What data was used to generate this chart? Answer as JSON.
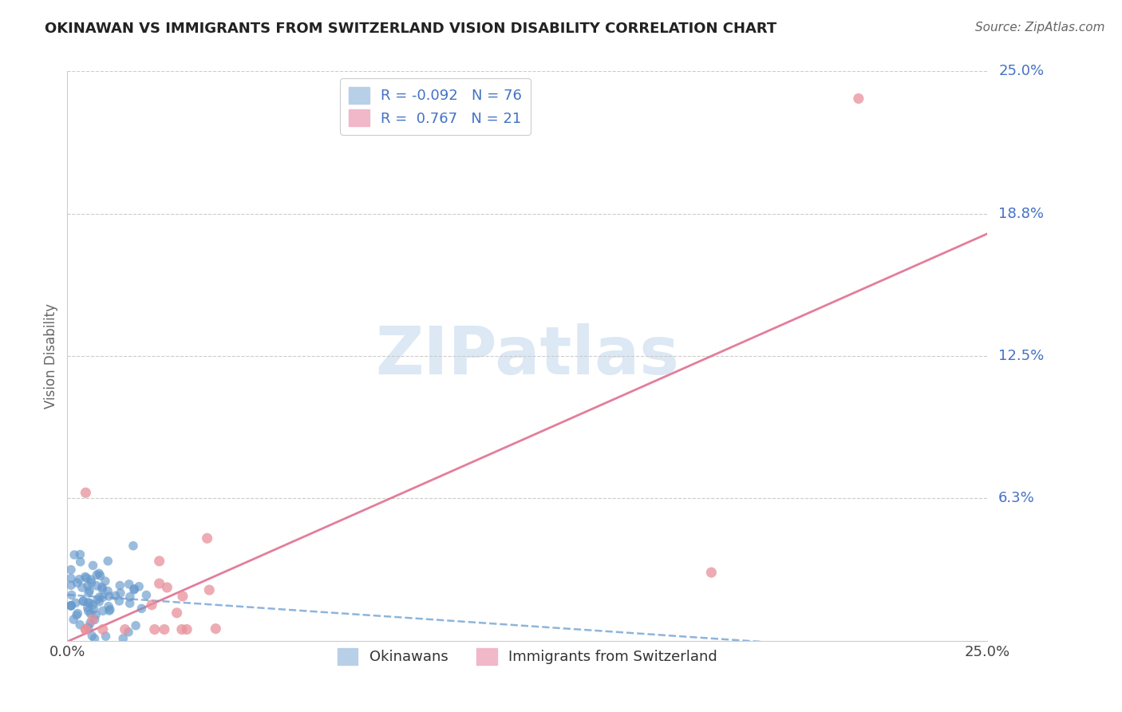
{
  "title": "OKINAWAN VS IMMIGRANTS FROM SWITZERLAND VISION DISABILITY CORRELATION CHART",
  "source_text": "Source: ZipAtlas.com",
  "ylabel": "Vision Disability",
  "xlim": [
    0,
    0.25
  ],
  "ylim": [
    0,
    0.25
  ],
  "ytick_vals": [
    0.0625,
    0.125,
    0.1875,
    0.25
  ],
  "ytick_labels": [
    "6.3%",
    "12.5%",
    "18.8%",
    "25.0%"
  ],
  "xtick_vals": [
    0.0,
    0.25
  ],
  "xtick_labels": [
    "0.0%",
    "25.0%"
  ],
  "okinawan_color": "#6699cc",
  "swiss_color": "#e8909a",
  "trend_ok_color": "#7aa8d4",
  "trend_sw_color": "#e07090",
  "background_color": "#ffffff",
  "grid_color": "#cccccc",
  "watermark_color": "#dce8f4",
  "title_color": "#222222",
  "source_color": "#666666",
  "ylabel_color": "#666666",
  "tick_label_color_x": "#444444",
  "tick_label_color_y": "#4472c4",
  "legend_top_label_color": "#4472c4",
  "legend_patch_blue": "#b8cfe8",
  "legend_patch_pink": "#f0b8c8",
  "legend_bottom_label_color": "#333333",
  "swiss_trend_intercept": 0.0,
  "swiss_trend_slope": 0.64,
  "ok_trend_intercept": 0.018,
  "ok_trend_slope": -0.092
}
